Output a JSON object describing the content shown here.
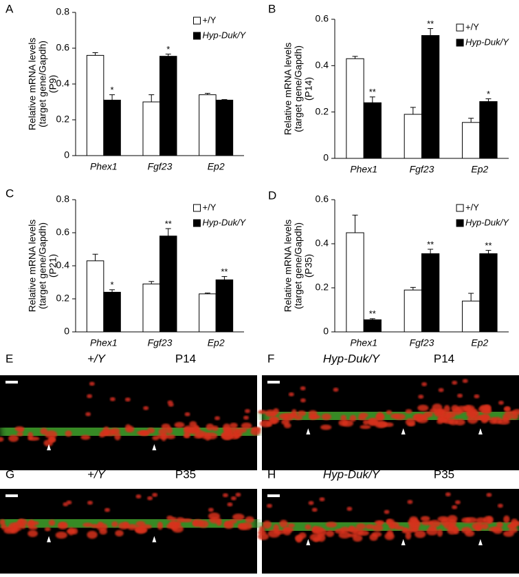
{
  "chart_data": [
    {
      "type": "bar",
      "panel": "A",
      "ylabel": [
        "Relative mRNA levels",
        "(target gene/Gapdh)",
        "(P9)"
      ],
      "categories": [
        "Phex1",
        "Fgf23",
        "Ep2"
      ],
      "ylim": [
        0,
        0.8
      ],
      "yticks": [
        0,
        0.2,
        0.4,
        0.6,
        0.8
      ],
      "series": [
        {
          "name": "+/Y",
          "color": "#ffffff",
          "values": [
            0.56,
            0.3,
            0.34
          ],
          "errors": [
            0.015,
            0.04,
            0.008
          ],
          "labels": [
            null,
            null,
            null
          ]
        },
        {
          "name": "Hyp-Duk/Y",
          "color": "#000000",
          "values": [
            0.31,
            0.555,
            0.31
          ],
          "errors": [
            0.03,
            0.012,
            0.003
          ],
          "labels": [
            "*",
            "*",
            null
          ]
        }
      ]
    },
    {
      "type": "bar",
      "panel": "B",
      "ylabel": [
        "Relative mRNA levels",
        "(target gene/Gapdh)",
        "(P14)"
      ],
      "categories": [
        "Phex1",
        "Fgf23",
        "Ep2"
      ],
      "ylim": [
        0,
        0.6
      ],
      "yticks": [
        0,
        0.2,
        0.4,
        0.6
      ],
      "series": [
        {
          "name": "+/Y",
          "color": "#ffffff",
          "values": [
            0.43,
            0.19,
            0.155
          ],
          "errors": [
            0.01,
            0.03,
            0.018
          ],
          "labels": [
            null,
            null,
            null
          ]
        },
        {
          "name": "Hyp-Duk/Y",
          "color": "#000000",
          "values": [
            0.24,
            0.53,
            0.245
          ],
          "errors": [
            0.025,
            0.03,
            0.012
          ],
          "labels": [
            "**",
            "**",
            "*"
          ]
        }
      ]
    },
    {
      "type": "bar",
      "panel": "C",
      "ylabel": [
        "Relative mRNA levels",
        "(target gene/Gapdh)",
        "(P21)"
      ],
      "categories": [
        "Phex1",
        "Fgf23",
        "Ep2"
      ],
      "ylim": [
        0,
        0.8
      ],
      "yticks": [
        0,
        0.2,
        0.4,
        0.6,
        0.8
      ],
      "series": [
        {
          "name": "+/Y",
          "color": "#ffffff",
          "values": [
            0.43,
            0.29,
            0.23
          ],
          "errors": [
            0.04,
            0.015,
            0.005
          ],
          "labels": [
            null,
            null,
            null
          ]
        },
        {
          "name": "Hyp-Duk/Y",
          "color": "#000000",
          "values": [
            0.24,
            0.58,
            0.315
          ],
          "errors": [
            0.015,
            0.045,
            0.02
          ],
          "labels": [
            "*",
            "**",
            "**"
          ]
        }
      ]
    },
    {
      "type": "bar",
      "panel": "D",
      "ylabel": [
        "Relative mRNA levels",
        "(target gene/Gapdh)",
        "(P35)"
      ],
      "categories": [
        "Phex1",
        "Fgf23",
        "Ep2"
      ],
      "ylim": [
        0,
        0.6
      ],
      "yticks": [
        0,
        0.2,
        0.4,
        0.6
      ],
      "series": [
        {
          "name": "+/Y",
          "color": "#ffffff",
          "values": [
            0.45,
            0.19,
            0.14
          ],
          "errors": [
            0.08,
            0.012,
            0.035
          ],
          "labels": [
            null,
            null,
            null
          ]
        },
        {
          "name": "Hyp-Duk/Y",
          "color": "#000000",
          "values": [
            0.055,
            0.355,
            0.355
          ],
          "errors": [
            0.005,
            0.02,
            0.015
          ],
          "labels": [
            "**",
            "**",
            "**"
          ]
        }
      ]
    }
  ],
  "images": [
    {
      "panel": "E",
      "genotype": "+/Y",
      "age": "P14"
    },
    {
      "panel": "F",
      "genotype": "Hyp-Duk/Y",
      "age": "P14"
    },
    {
      "panel": "G",
      "genotype": "+/Y",
      "age": "P35"
    },
    {
      "panel": "H",
      "genotype": "Hyp-Duk/Y",
      "age": "P35"
    }
  ]
}
